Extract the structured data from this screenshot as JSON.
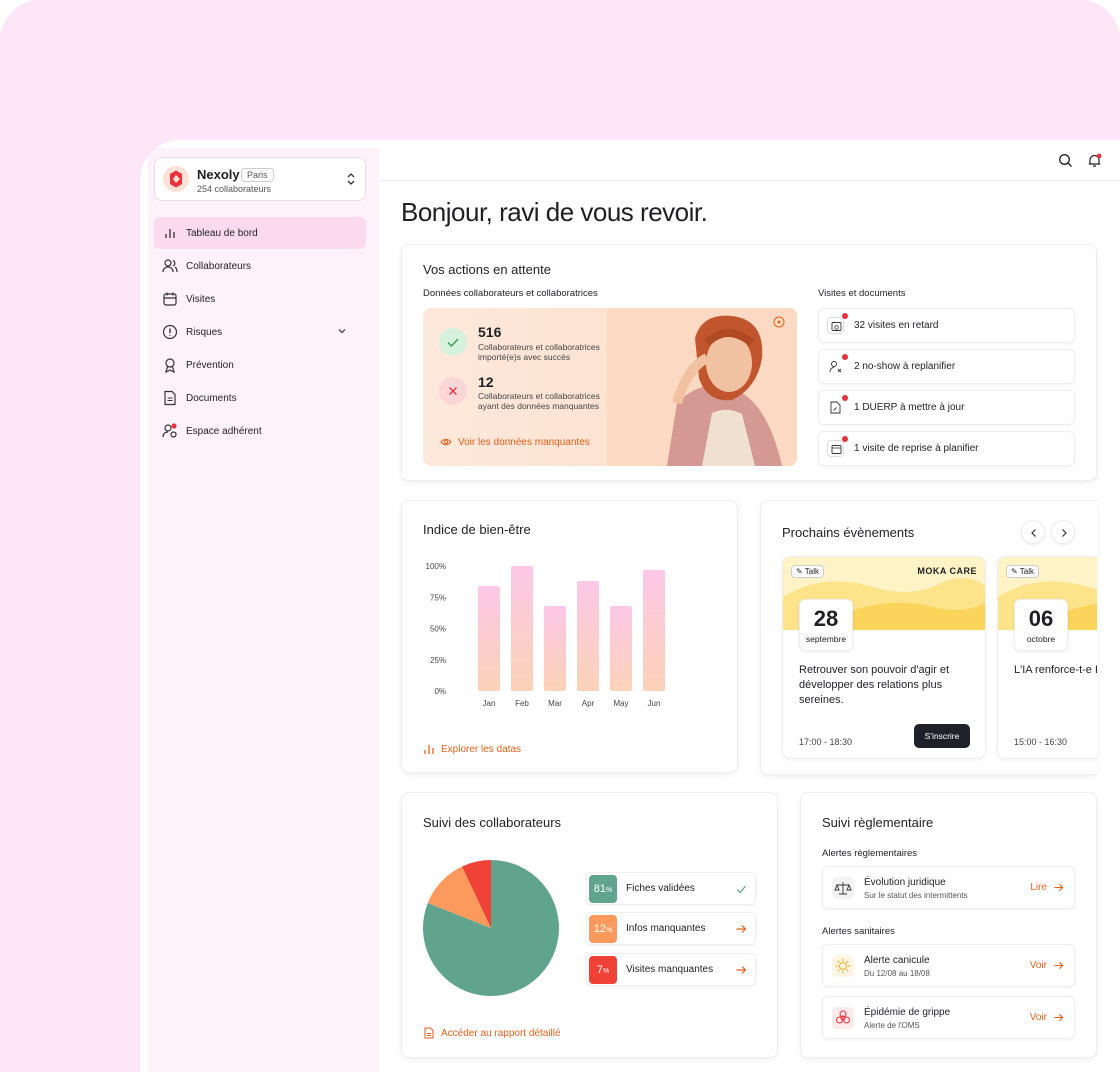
{
  "org": {
    "name": "Nexoly",
    "tag": "Paris",
    "count": "254 collaborateurs"
  },
  "nav": [
    {
      "label": "Tableau de bord",
      "icon": "bar-chart-icon"
    },
    {
      "label": "Collaborateurs",
      "icon": "users-icon"
    },
    {
      "label": "Visites",
      "icon": "calendar-icon"
    },
    {
      "label": "Risques",
      "icon": "alert-circle-icon"
    },
    {
      "label": "Prévention",
      "icon": "ribbon-icon"
    },
    {
      "label": "Documents",
      "icon": "document-icon"
    },
    {
      "label": "Espace adhérent",
      "icon": "user-badge-icon"
    }
  ],
  "greeting": "Bonjour, ravi de vous revoir.",
  "actions": {
    "title": "Vos actions en attente",
    "data_title": "Données collaborateurs et collaboratrices",
    "imported_num": "516",
    "imported_text": "Collaborateurs et collaboratrices importé(e)s avec succès",
    "missing_num": "12",
    "missing_text": "Collaborateurs et collaboratrices ayant des données manquantes",
    "link": "Voir les données manquantes",
    "visits_title": "Visites et documents",
    "visits": [
      "32 visites en retard",
      "2 no-show à replanifier",
      "1 DUERP à mettre à jour",
      "1 visite de reprise à planifier"
    ]
  },
  "wellbeing": {
    "title": "Indice de bien-être",
    "link": "Explorer les datas"
  },
  "chart_data": {
    "type": "bar",
    "categories": [
      "Jan",
      "Feb",
      "Mar",
      "Apr",
      "May",
      "Jun"
    ],
    "values": [
      84,
      100,
      68,
      88,
      68,
      97
    ],
    "yticks": [
      "100%",
      "75%",
      "50%",
      "25%",
      "0%"
    ],
    "ylim": [
      0,
      100
    ],
    "grid": false
  },
  "events": {
    "title": "Prochains évènements",
    "items": [
      {
        "tag": "Talk",
        "brand": "MOKA CARE",
        "day": "28",
        "month": "septembre",
        "title": "Retrouver son pouvoir d'agir et développer des relations plus sereines.",
        "time": "17:00 - 18:30",
        "button": "S'inscrire"
      },
      {
        "tag": "Talk",
        "brand": "",
        "day": "06",
        "month": "octobre",
        "title": "L'IA renforce-t-e RH sur les RPS ?",
        "time": "15:00 - 16:30",
        "button": ""
      }
    ]
  },
  "suivi": {
    "title": "Suivi des collaborateurs",
    "link": "Accéder au rapport détaillé",
    "rows": [
      {
        "pct": "81",
        "unit": "%",
        "label": "Fiches validées",
        "color": "#61a48d"
      },
      {
        "pct": "12",
        "unit": "%",
        "label": "Infos manquantes",
        "color": "#fb9a5c"
      },
      {
        "pct": "7",
        "unit": "%",
        "label": "Visites manquantes",
        "color": "#ef4136"
      }
    ]
  },
  "regl": {
    "title": "Suivi règlementaire",
    "alerts_title": "Alertes règlementaires",
    "sanitary_title": "Alertes sanitaires",
    "items": [
      {
        "title": "Évolution juridique",
        "sub": "Sur le statut des intermittents",
        "action": "Lire"
      },
      {
        "title": "Alerte canicule",
        "sub": "Du 12/08 au 18/08",
        "action": "Voir"
      },
      {
        "title": "Épidémie de grippe",
        "sub": "Alerte de l'OMS",
        "action": "Voir"
      }
    ]
  },
  "colors": {
    "accent": "#e2611b",
    "sidebar_active": "#fbd9ee",
    "bar_top": "#fcc8e7",
    "bar_bottom": "#fcd2b8"
  }
}
